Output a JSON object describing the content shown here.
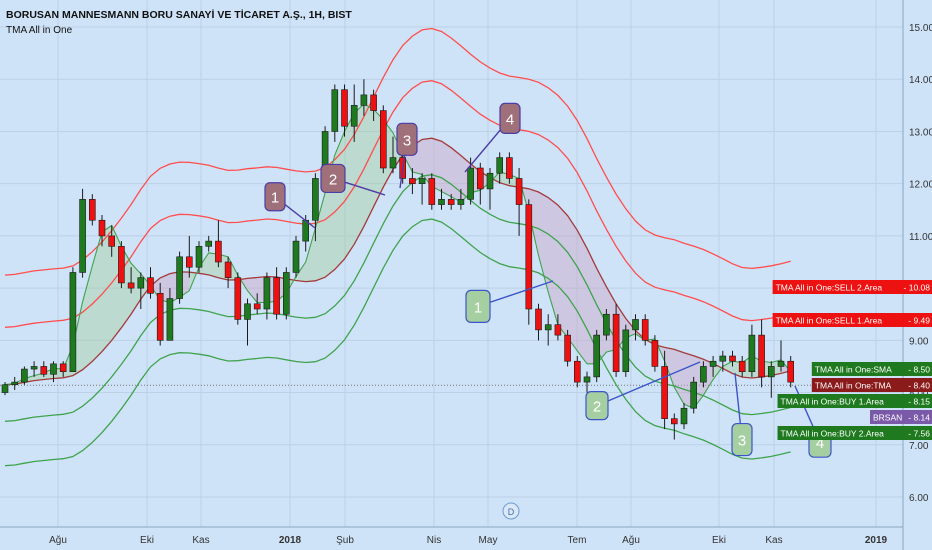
{
  "header": {
    "title": "BORUSAN MANNESMANN BORU SANAYİ VE TİCARET A.Ş., 1H, BIST",
    "indicator": "TMA All in One"
  },
  "event_marker": "D",
  "colors": {
    "background": "#cfe3f8",
    "up_candle": "#1f7a1f",
    "down_candle": "#ee1111",
    "sell_band": "#ff4d4d",
    "sma_band": "#a33a3a",
    "buy_band": "#3fa34d",
    "signal_red_fill": "#a0707a",
    "signal_green_fill": "#a5cfa0"
  },
  "chart_data": {
    "type": "candlestick",
    "x_tick_labels": [
      "Ağu",
      "Eki",
      "Kas",
      "2018",
      "Şub",
      "Nis",
      "May",
      "Tem",
      "Ağu",
      "Eki",
      "Kas",
      "2019"
    ],
    "y_tick_labels": [
      "6.00",
      "7.00",
      "8.00",
      "9.00",
      "10.00",
      "11.00",
      "12.00",
      "13.00",
      "14.00",
      "15.00"
    ],
    "ylim": [
      5.5,
      15.5
    ],
    "candles": [
      [
        8.0,
        8.2,
        7.95,
        8.15
      ],
      [
        8.15,
        8.3,
        8.05,
        8.2
      ],
      [
        8.2,
        8.5,
        8.15,
        8.45
      ],
      [
        8.45,
        8.6,
        8.3,
        8.5
      ],
      [
        8.5,
        8.6,
        8.3,
        8.35
      ],
      [
        8.35,
        8.6,
        8.2,
        8.55
      ],
      [
        8.55,
        8.6,
        8.3,
        8.4
      ],
      [
        8.4,
        10.4,
        8.4,
        10.3
      ],
      [
        10.3,
        11.9,
        10.2,
        11.7
      ],
      [
        11.7,
        11.8,
        11.2,
        11.3
      ],
      [
        11.3,
        11.4,
        10.8,
        11.0
      ],
      [
        11.0,
        11.2,
        10.6,
        10.8
      ],
      [
        10.8,
        10.9,
        10.0,
        10.1
      ],
      [
        10.1,
        10.4,
        9.9,
        10.0
      ],
      [
        10.0,
        10.3,
        9.6,
        10.2
      ],
      [
        10.2,
        10.4,
        9.8,
        9.9
      ],
      [
        9.9,
        10.1,
        8.9,
        9.0
      ],
      [
        9.0,
        10.0,
        9.0,
        9.8
      ],
      [
        9.8,
        10.7,
        9.7,
        10.6
      ],
      [
        10.6,
        11.0,
        10.2,
        10.4
      ],
      [
        10.4,
        10.9,
        10.3,
        10.8
      ],
      [
        10.8,
        11.0,
        10.7,
        10.9
      ],
      [
        10.9,
        11.3,
        10.4,
        10.5
      ],
      [
        10.5,
        10.6,
        10.0,
        10.2
      ],
      [
        10.2,
        10.3,
        9.3,
        9.4
      ],
      [
        9.4,
        9.8,
        8.9,
        9.7
      ],
      [
        9.7,
        9.9,
        9.5,
        9.6
      ],
      [
        9.6,
        10.3,
        9.4,
        10.2
      ],
      [
        10.2,
        10.4,
        9.4,
        9.5
      ],
      [
        9.5,
        10.4,
        9.4,
        10.3
      ],
      [
        10.3,
        11.0,
        10.2,
        10.9
      ],
      [
        10.9,
        11.4,
        10.7,
        11.3
      ],
      [
        11.3,
        12.2,
        10.9,
        12.1
      ],
      [
        12.1,
        13.1,
        12.0,
        13.0
      ],
      [
        13.0,
        13.9,
        12.8,
        13.8
      ],
      [
        13.8,
        13.9,
        12.9,
        13.1
      ],
      [
        13.1,
        13.9,
        12.8,
        13.5
      ],
      [
        13.5,
        14.0,
        13.3,
        13.7
      ],
      [
        13.7,
        13.8,
        13.2,
        13.4
      ],
      [
        13.4,
        13.5,
        12.2,
        12.3
      ],
      [
        12.3,
        12.9,
        12.2,
        12.5
      ],
      [
        12.5,
        12.8,
        12.0,
        12.1
      ],
      [
        12.1,
        12.3,
        11.8,
        12.0
      ],
      [
        12.0,
        12.2,
        11.6,
        12.1
      ],
      [
        12.1,
        12.2,
        11.5,
        11.6
      ],
      [
        11.6,
        11.9,
        11.5,
        11.7
      ],
      [
        11.7,
        11.8,
        11.5,
        11.6
      ],
      [
        11.6,
        11.9,
        11.5,
        11.7
      ],
      [
        11.7,
        12.5,
        11.6,
        12.3
      ],
      [
        12.3,
        12.4,
        11.6,
        11.9
      ],
      [
        11.9,
        12.3,
        11.5,
        12.2
      ],
      [
        12.2,
        12.6,
        12.0,
        12.5
      ],
      [
        12.5,
        12.6,
        12.0,
        12.1
      ],
      [
        12.1,
        12.3,
        11.0,
        11.6
      ],
      [
        11.6,
        11.7,
        9.3,
        9.6
      ],
      [
        9.6,
        9.7,
        9.0,
        9.2
      ],
      [
        9.2,
        9.5,
        8.9,
        9.3
      ],
      [
        9.3,
        9.5,
        9.0,
        9.1
      ],
      [
        9.1,
        9.2,
        8.5,
        8.6
      ],
      [
        8.6,
        8.7,
        8.1,
        8.2
      ],
      [
        8.2,
        8.4,
        8.0,
        8.3
      ],
      [
        8.3,
        9.2,
        8.2,
        9.1
      ],
      [
        9.1,
        9.6,
        9.0,
        9.5
      ],
      [
        9.5,
        9.7,
        8.3,
        8.4
      ],
      [
        8.4,
        9.3,
        8.3,
        9.2
      ],
      [
        9.2,
        9.5,
        9.0,
        9.4
      ],
      [
        9.4,
        9.5,
        8.9,
        9.0
      ],
      [
        9.0,
        9.1,
        8.4,
        8.5
      ],
      [
        8.5,
        8.8,
        7.3,
        7.5
      ],
      [
        7.5,
        7.6,
        7.1,
        7.4
      ],
      [
        7.4,
        7.8,
        7.3,
        7.7
      ],
      [
        7.7,
        8.3,
        7.6,
        8.2
      ],
      [
        8.2,
        8.6,
        8.1,
        8.5
      ],
      [
        8.5,
        8.7,
        8.3,
        8.6
      ],
      [
        8.6,
        8.8,
        8.4,
        8.7
      ],
      [
        8.7,
        8.8,
        8.5,
        8.6
      ],
      [
        8.6,
        8.7,
        8.3,
        8.4
      ],
      [
        8.4,
        9.3,
        8.3,
        9.1
      ],
      [
        9.1,
        9.4,
        8.1,
        8.3
      ],
      [
        8.3,
        8.6,
        7.9,
        8.5
      ],
      [
        8.5,
        9.0,
        8.4,
        8.6
      ],
      [
        8.6,
        8.7,
        8.1,
        8.2
      ]
    ],
    "series": [
      {
        "name": "TMA All in One:SELL 2.Area",
        "last_value": 10.08
      },
      {
        "name": "TMA All in One:SELL 1.Area",
        "last_value": 9.49
      },
      {
        "name": "TMA All in One:SMA",
        "last_value": 8.5
      },
      {
        "name": "TMA All in One:TMA",
        "last_value": 8.4
      },
      {
        "name": "TMA All in One:BUY 1.Area",
        "last_value": 8.15
      },
      {
        "name": "BRSAN",
        "last_value": 8.14
      },
      {
        "name": "TMA All in One:BUY 2.Area",
        "last_value": 7.56
      }
    ],
    "price_labels": [
      {
        "text": "TMA All in One:SELL 2.Area",
        "value": "10.08",
        "color": "#ee1111"
      },
      {
        "text": "TMA All in One:SELL 1.Area",
        "value": "9.49",
        "color": "#ee1111"
      },
      {
        "text": "TMA All in One:SMA",
        "value": "8.50",
        "color": "#1f7a1f"
      },
      {
        "text": "TMA All in One:TMA",
        "value": "8.40",
        "color": "#8b1a1a"
      },
      {
        "text": "TMA All in One:BUY 1.Area",
        "value": "8.15",
        "color": "#1f7a1f"
      },
      {
        "text": "BRSAN",
        "value": "8.14",
        "color": "#7a5aa8"
      },
      {
        "text": "TMA All in One:BUY 2.Area",
        "value": "7.56",
        "color": "#1f7a1f"
      }
    ],
    "annotations": [
      {
        "label": "1",
        "kind": "sell",
        "value": 11.75
      },
      {
        "label": "2",
        "kind": "sell",
        "value": 12.1
      },
      {
        "label": "3",
        "kind": "sell",
        "value": 12.85
      },
      {
        "label": "4",
        "kind": "sell",
        "value": 13.25
      },
      {
        "label": "1",
        "kind": "buy",
        "value": 9.65
      },
      {
        "label": "2",
        "kind": "buy",
        "value": 7.75
      },
      {
        "label": "3",
        "kind": "buy",
        "value": 7.1
      },
      {
        "label": "4",
        "kind": "buy",
        "value": 7.05
      }
    ]
  }
}
